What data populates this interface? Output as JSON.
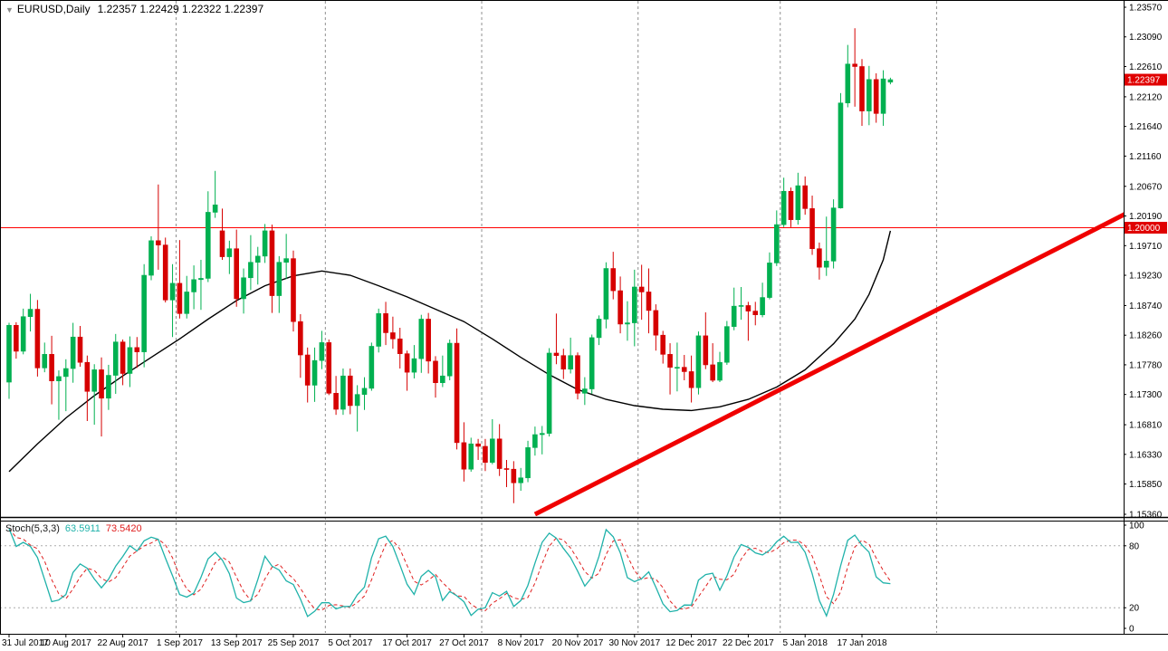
{
  "header": {
    "marker": "▼",
    "symbol": "EURUSD,Daily",
    "ohlc_line": "1.22357 1.22429 1.22322 1.22397"
  },
  "indicator_label": {
    "name": "Stoch(5,3,3)",
    "k_value": "63.5911",
    "d_value": "73.5420"
  },
  "axis": {
    "price_labels": [
      "1.23570",
      "1.23090",
      "1.22610",
      "1.22120",
      "1.21640",
      "1.21160",
      "1.20670",
      "1.20190",
      "1.19710",
      "1.19230",
      "1.18740",
      "1.18260",
      "1.17780",
      "1.17300",
      "1.16810",
      "1.16330",
      "1.15850",
      "1.15360"
    ],
    "time_labels": [
      {
        "label": "31 Jul 2017",
        "index": 0
      },
      {
        "label": "10 Aug 2017",
        "index": 8
      },
      {
        "label": "22 Aug 2017",
        "index": 16
      },
      {
        "label": "1 Sep 2017",
        "index": 24
      },
      {
        "label": "13 Sep 2017",
        "index": 32
      },
      {
        "label": "25 Sep 2017",
        "index": 40
      },
      {
        "label": "5 Oct 2017",
        "index": 48
      },
      {
        "label": "17 Oct 2017",
        "index": 56
      },
      {
        "label": "27 Oct 2017",
        "index": 64
      },
      {
        "label": "8 Nov 2017",
        "index": 72
      },
      {
        "label": "20 Nov 2017",
        "index": 80
      },
      {
        "label": "30 Nov 2017",
        "index": 88
      },
      {
        "label": "12 Dec 2017",
        "index": 96
      },
      {
        "label": "22 Dec 2017",
        "index": 104
      },
      {
        "label": "5 Jan 2018",
        "index": 112
      },
      {
        "label": "17 Jan 2018",
        "index": 120
      }
    ],
    "stoch_labels": [
      {
        "label": "100",
        "value": 100
      },
      {
        "label": "80",
        "value": 80
      },
      {
        "label": "20",
        "value": 20
      },
      {
        "label": "0",
        "value": 0
      }
    ]
  },
  "chart_data": {
    "type": "candlestick",
    "symbol": "EURUSD",
    "timeframe": "Daily",
    "title": "EURUSD,Daily 1.22357 1.22429 1.22322 1.22397",
    "price_range": {
      "top": 1.2357,
      "bottom": 1.1536
    },
    "horizontal_line": {
      "price": 1.2,
      "label": "1.20000"
    },
    "current_price": {
      "price": 1.22397,
      "label": "1.22397"
    },
    "trendline": {
      "from_index": 74,
      "from_price": 1.1536,
      "to_index": 157,
      "to_price": 1.2022
    },
    "month_separators": [
      23.5,
      44.5,
      66.5,
      88.5,
      108.5,
      130.5
    ],
    "stochastic": {
      "name": "Stoch(5,3,3)",
      "k_period": 5,
      "d_period": 3,
      "slowing": 3,
      "k_current": 63.5911,
      "d_current": 73.542,
      "levels": [
        80,
        20
      ],
      "range": [
        0,
        100
      ]
    },
    "colors": {
      "bull": "#00B050",
      "bear": "#D60000",
      "ma": "#000000",
      "trendline": "#F00000",
      "hline": "#FF0000",
      "grid": "#909090",
      "stoch_k": "#20B2AA",
      "stoch_d": "#E02020",
      "tag_bg": "#E00000",
      "tag_text": "#FFFFFF"
    },
    "ma_points": [
      [
        0,
        1.1605
      ],
      [
        4,
        1.165
      ],
      [
        8,
        1.1692
      ],
      [
        12,
        1.1728
      ],
      [
        16,
        1.176
      ],
      [
        20,
        1.179
      ],
      [
        24,
        1.182
      ],
      [
        28,
        1.1852
      ],
      [
        32,
        1.1882
      ],
      [
        36,
        1.1906
      ],
      [
        40,
        1.1922
      ],
      [
        44,
        1.193
      ],
      [
        48,
        1.1923
      ],
      [
        52,
        1.1906
      ],
      [
        56,
        1.1888
      ],
      [
        60,
        1.1868
      ],
      [
        64,
        1.1848
      ],
      [
        68,
        1.182
      ],
      [
        72,
        1.179
      ],
      [
        76,
        1.1762
      ],
      [
        80,
        1.1738
      ],
      [
        84,
        1.1722
      ],
      [
        88,
        1.1712
      ],
      [
        92,
        1.1706
      ],
      [
        96,
        1.1704
      ],
      [
        100,
        1.171
      ],
      [
        104,
        1.1722
      ],
      [
        108,
        1.1742
      ],
      [
        112,
        1.177
      ],
      [
        116,
        1.1812
      ],
      [
        119,
        1.1852
      ],
      [
        121,
        1.1892
      ],
      [
        123,
        1.1948
      ],
      [
        124,
        1.1995
      ]
    ],
    "candles": [
      [
        "2017-07-31",
        1.175,
        1.1846,
        1.1723,
        1.1842
      ],
      [
        "2017-08-01",
        1.1842,
        1.1847,
        1.1788,
        1.18
      ],
      [
        "2017-08-02",
        1.18,
        1.1869,
        1.1795,
        1.1856
      ],
      [
        "2017-08-03",
        1.1856,
        1.1893,
        1.1832,
        1.1868
      ],
      [
        "2017-08-04",
        1.1868,
        1.1883,
        1.1759,
        1.1773
      ],
      [
        "2017-08-07",
        1.1773,
        1.1814,
        1.1766,
        1.1795
      ],
      [
        "2017-08-08",
        1.1795,
        1.1825,
        1.1714,
        1.1752
      ],
      [
        "2017-08-09",
        1.1752,
        1.1769,
        1.1689,
        1.1759
      ],
      [
        "2017-08-10",
        1.1759,
        1.1787,
        1.1703,
        1.1772
      ],
      [
        "2017-08-11",
        1.1772,
        1.1846,
        1.1749,
        1.1823
      ],
      [
        "2017-08-14",
        1.1823,
        1.1841,
        1.1775,
        1.1782
      ],
      [
        "2017-08-15",
        1.1782,
        1.1793,
        1.1687,
        1.1735
      ],
      [
        "2017-08-16",
        1.1735,
        1.1779,
        1.1681,
        1.177
      ],
      [
        "2017-08-17",
        1.177,
        1.179,
        1.1662,
        1.1724
      ],
      [
        "2017-08-18",
        1.1724,
        1.1778,
        1.1705,
        1.1761
      ],
      [
        "2017-08-21",
        1.1761,
        1.1828,
        1.1731,
        1.1815
      ],
      [
        "2017-08-22",
        1.1815,
        1.1819,
        1.1745,
        1.1764
      ],
      [
        "2017-08-23",
        1.1764,
        1.1824,
        1.1742,
        1.1806
      ],
      [
        "2017-08-24",
        1.1806,
        1.1823,
        1.1773,
        1.1799
      ],
      [
        "2017-08-25",
        1.1799,
        1.1941,
        1.1774,
        1.1923
      ],
      [
        "2017-08-28",
        1.1923,
        1.1986,
        1.1915,
        1.1979
      ],
      [
        "2017-08-29",
        1.1979,
        1.207,
        1.1932,
        1.1972
      ],
      [
        "2017-08-30",
        1.1972,
        1.1984,
        1.1879,
        1.1883
      ],
      [
        "2017-08-31",
        1.1883,
        1.1941,
        1.1823,
        1.191
      ],
      [
        "2017-09-01",
        1.191,
        1.198,
        1.1853,
        1.1861
      ],
      [
        "2017-09-04",
        1.1861,
        1.1922,
        1.1853,
        1.1896
      ],
      [
        "2017-09-05",
        1.1896,
        1.1939,
        1.1868,
        1.1916
      ],
      [
        "2017-09-06",
        1.1916,
        1.1948,
        1.1867,
        1.1918
      ],
      [
        "2017-09-07",
        1.1918,
        1.2059,
        1.1912,
        1.2025
      ],
      [
        "2017-09-08",
        1.2025,
        1.2092,
        1.2016,
        1.2037
      ],
      [
        "2017-09-11",
        1.1995,
        1.2031,
        1.1948,
        1.1953
      ],
      [
        "2017-09-12",
        1.1953,
        1.1979,
        1.1925,
        1.1966
      ],
      [
        "2017-09-13",
        1.1966,
        1.1997,
        1.1872,
        1.1885
      ],
      [
        "2017-09-14",
        1.1885,
        1.1934,
        1.1861,
        1.1919
      ],
      [
        "2017-09-15",
        1.1919,
        1.1988,
        1.1899,
        1.1944
      ],
      [
        "2017-09-18",
        1.1944,
        1.1969,
        1.1908,
        1.1954
      ],
      [
        "2017-09-19",
        1.1954,
        1.2006,
        1.1943,
        1.1995
      ],
      [
        "2017-09-20",
        1.1995,
        1.2005,
        1.1862,
        1.189
      ],
      [
        "2017-09-21",
        1.189,
        1.1954,
        1.1862,
        1.1944
      ],
      [
        "2017-09-22",
        1.1944,
        1.199,
        1.1917,
        1.195
      ],
      [
        "2017-09-25",
        1.195,
        1.1963,
        1.1832,
        1.1848
      ],
      [
        "2017-09-26",
        1.1848,
        1.186,
        1.1757,
        1.1794
      ],
      [
        "2017-09-27",
        1.1794,
        1.1806,
        1.1717,
        1.1745
      ],
      [
        "2017-09-28",
        1.1745,
        1.1806,
        1.1718,
        1.1785
      ],
      [
        "2017-09-29",
        1.1785,
        1.1833,
        1.1771,
        1.1814
      ],
      [
        "2017-10-02",
        1.1814,
        1.1819,
        1.1729,
        1.1732
      ],
      [
        "2017-10-03",
        1.1732,
        1.176,
        1.1697,
        1.1706
      ],
      [
        "2017-10-04",
        1.1706,
        1.1772,
        1.1697,
        1.176
      ],
      [
        "2017-10-05",
        1.176,
        1.1772,
        1.1698,
        1.1712
      ],
      [
        "2017-10-06",
        1.1712,
        1.1745,
        1.167,
        1.173
      ],
      [
        "2017-10-09",
        1.173,
        1.1758,
        1.1705,
        1.174
      ],
      [
        "2017-10-10",
        1.174,
        1.1814,
        1.1736,
        1.1808
      ],
      [
        "2017-10-11",
        1.1808,
        1.1869,
        1.1798,
        1.1861
      ],
      [
        "2017-10-12",
        1.1861,
        1.188,
        1.181,
        1.183
      ],
      [
        "2017-10-13",
        1.183,
        1.1856,
        1.1804,
        1.182
      ],
      [
        "2017-10-16",
        1.182,
        1.1838,
        1.1772,
        1.1796
      ],
      [
        "2017-10-17",
        1.1796,
        1.1801,
        1.1736,
        1.1766
      ],
      [
        "2017-10-18",
        1.1766,
        1.181,
        1.1756,
        1.1788
      ],
      [
        "2017-10-19",
        1.1788,
        1.1859,
        1.1765,
        1.1852
      ],
      [
        "2017-10-20",
        1.1852,
        1.1862,
        1.1764,
        1.1784
      ],
      [
        "2017-10-23",
        1.1784,
        1.1792,
        1.1725,
        1.1749
      ],
      [
        "2017-10-24",
        1.1749,
        1.1793,
        1.1742,
        1.176
      ],
      [
        "2017-10-25",
        1.176,
        1.1819,
        1.1753,
        1.1813
      ],
      [
        "2017-10-26",
        1.1813,
        1.1837,
        1.1641,
        1.1652
      ],
      [
        "2017-10-27",
        1.1652,
        1.1685,
        1.1589,
        1.1609
      ],
      [
        "2017-10-30",
        1.1609,
        1.166,
        1.1605,
        1.165
      ],
      [
        "2017-10-31",
        1.165,
        1.1658,
        1.1624,
        1.1646
      ],
      [
        "2017-11-01",
        1.1646,
        1.1658,
        1.1606,
        1.162
      ],
      [
        "2017-11-02",
        1.162,
        1.169,
        1.1617,
        1.1658
      ],
      [
        "2017-11-03",
        1.1658,
        1.1682,
        1.1598,
        1.161
      ],
      [
        "2017-11-06",
        1.161,
        1.1624,
        1.158,
        1.1609
      ],
      [
        "2017-11-07",
        1.1609,
        1.1622,
        1.1554,
        1.1587
      ],
      [
        "2017-11-08",
        1.1587,
        1.1611,
        1.1574,
        1.1595
      ],
      [
        "2017-11-09",
        1.1595,
        1.1655,
        1.1588,
        1.1644
      ],
      [
        "2017-11-10",
        1.1644,
        1.1678,
        1.1631,
        1.1665
      ],
      [
        "2017-11-13",
        1.1665,
        1.1679,
        1.1633,
        1.1667
      ],
      [
        "2017-11-14",
        1.1667,
        1.1805,
        1.1662,
        1.1797
      ],
      [
        "2017-11-15",
        1.1797,
        1.1861,
        1.1779,
        1.1793
      ],
      [
        "2017-11-16",
        1.1793,
        1.1804,
        1.1755,
        1.1771
      ],
      [
        "2017-11-17",
        1.1771,
        1.1822,
        1.1764,
        1.1793
      ],
      [
        "2017-11-20",
        1.1793,
        1.1798,
        1.1722,
        1.1732
      ],
      [
        "2017-11-21",
        1.1732,
        1.1758,
        1.1713,
        1.1739
      ],
      [
        "2017-11-22",
        1.1739,
        1.1827,
        1.1731,
        1.1822
      ],
      [
        "2017-11-23",
        1.1822,
        1.1858,
        1.181,
        1.1852
      ],
      [
        "2017-11-24",
        1.1852,
        1.1944,
        1.1837,
        1.1934
      ],
      [
        "2017-11-27",
        1.1934,
        1.1961,
        1.1884,
        1.1898
      ],
      [
        "2017-11-28",
        1.1898,
        1.1921,
        1.1829,
        1.1844
      ],
      [
        "2017-11-29",
        1.1844,
        1.1881,
        1.1817,
        1.1846
      ],
      [
        "2017-11-30",
        1.1846,
        1.1932,
        1.1808,
        1.1904
      ],
      [
        "2017-12-01",
        1.1904,
        1.194,
        1.1851,
        1.1896
      ],
      [
        "2017-12-04",
        1.1896,
        1.1934,
        1.1829,
        1.1866
      ],
      [
        "2017-12-05",
        1.1866,
        1.1876,
        1.1801,
        1.1826
      ],
      [
        "2017-12-06",
        1.1826,
        1.1833,
        1.178,
        1.1795
      ],
      [
        "2017-12-07",
        1.1795,
        1.1813,
        1.173,
        1.1774
      ],
      [
        "2017-12-08",
        1.1774,
        1.1814,
        1.1735,
        1.1774
      ],
      [
        "2017-12-11",
        1.1774,
        1.1794,
        1.1753,
        1.1767
      ],
      [
        "2017-12-12",
        1.1767,
        1.1793,
        1.1717,
        1.1741
      ],
      [
        "2017-12-13",
        1.1741,
        1.1832,
        1.173,
        1.1825
      ],
      [
        "2017-12-14",
        1.1825,
        1.1863,
        1.1771,
        1.1778
      ],
      [
        "2017-12-15",
        1.1778,
        1.1813,
        1.175,
        1.1753
      ],
      [
        "2017-12-18",
        1.1753,
        1.1799,
        1.175,
        1.1782
      ],
      [
        "2017-12-19",
        1.1782,
        1.1849,
        1.1778,
        1.184
      ],
      [
        "2017-12-20",
        1.184,
        1.1903,
        1.1834,
        1.1873
      ],
      [
        "2017-12-21",
        1.1873,
        1.1904,
        1.1851,
        1.1874
      ],
      [
        "2017-12-22",
        1.1874,
        1.188,
        1.1817,
        1.1865
      ],
      [
        "2017-12-26",
        1.1865,
        1.188,
        1.1842,
        1.1859
      ],
      [
        "2017-12-27",
        1.1859,
        1.1911,
        1.1855,
        1.1887
      ],
      [
        "2017-12-28",
        1.1887,
        1.196,
        1.1884,
        1.1943
      ],
      [
        "2017-12-29",
        1.1943,
        1.2028,
        1.1938,
        1.2005
      ],
      [
        "2018-01-02",
        1.2005,
        1.2081,
        1.2001,
        1.2059
      ],
      [
        "2018-01-03",
        1.2059,
        1.2065,
        1.2001,
        1.2013
      ],
      [
        "2018-01-04",
        1.2013,
        1.2089,
        1.2005,
        1.2068
      ],
      [
        "2018-01-05",
        1.2068,
        1.2083,
        1.2021,
        1.2031
      ],
      [
        "2018-01-08",
        1.2031,
        1.2052,
        1.1956,
        1.1966
      ],
      [
        "2018-01-09",
        1.1966,
        1.1976,
        1.1916,
        1.1936
      ],
      [
        "2018-01-10",
        1.1936,
        1.2018,
        1.1922,
        1.1946
      ],
      [
        "2018-01-11",
        1.1946,
        1.2046,
        1.1934,
        1.2032
      ],
      [
        "2018-01-12",
        1.2032,
        1.2218,
        1.2031,
        1.2202
      ],
      [
        "2018-01-15",
        1.2202,
        1.2296,
        1.2195,
        1.2265
      ],
      [
        "2018-01-16",
        1.2265,
        1.2323,
        1.2196,
        1.2261
      ],
      [
        "2018-01-17",
        1.2261,
        1.2273,
        1.2165,
        1.2189
      ],
      [
        "2018-01-18",
        1.2189,
        1.2262,
        1.2166,
        1.224
      ],
      [
        "2018-01-19",
        1.224,
        1.225,
        1.217,
        1.2185
      ],
      [
        "2018-01-22",
        1.2185,
        1.2255,
        1.2165,
        1.2241
      ],
      [
        "2018-01-23",
        1.22357,
        1.22429,
        1.22322,
        1.22397
      ]
    ]
  }
}
